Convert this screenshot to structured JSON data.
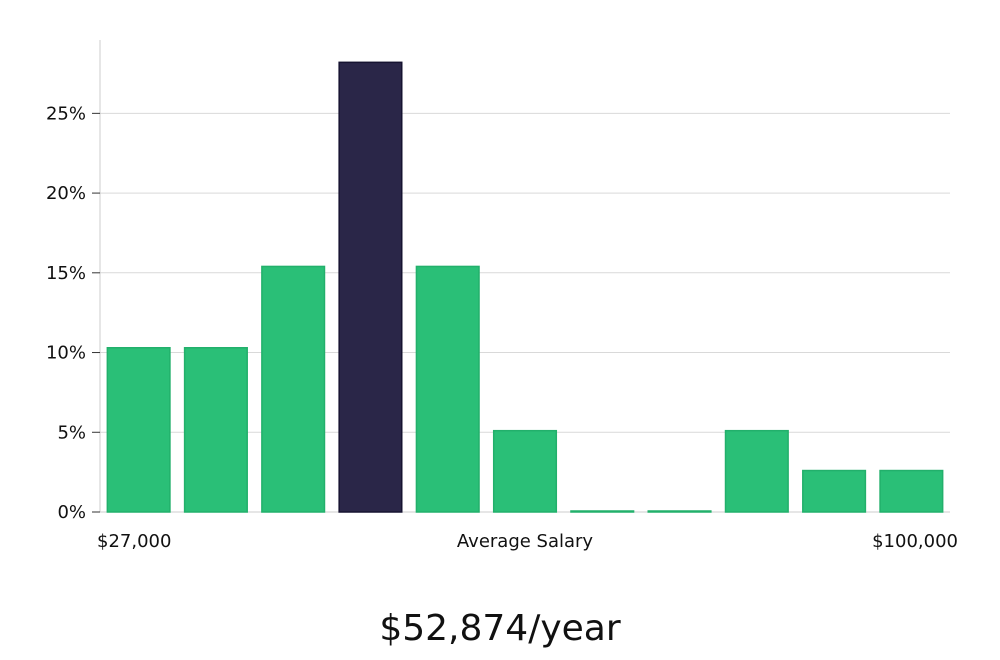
{
  "chart_data": {
    "type": "bar",
    "x_axis": {
      "min_label": "$27,000",
      "center_label": "Average Salary",
      "max_label": "$100,000"
    },
    "y_ticks": [
      "0%",
      "5%",
      "10%",
      "15%",
      "20%",
      "25%"
    ],
    "ylim": [
      0,
      29.6
    ],
    "values": [
      10.3,
      10.3,
      15.4,
      28.2,
      15.4,
      5.1,
      0,
      0,
      5.1,
      2.6,
      2.6
    ],
    "highlight_index": 3,
    "grid": true,
    "colors": {
      "bar": "#2abf77",
      "bar_stroke": "#22b06b",
      "highlight": "#2a2648",
      "highlight_stroke": "#161331",
      "grid": "#d9d9d9",
      "axis": "#cccccc"
    }
  },
  "salary": {
    "value": "$52,874/year"
  }
}
